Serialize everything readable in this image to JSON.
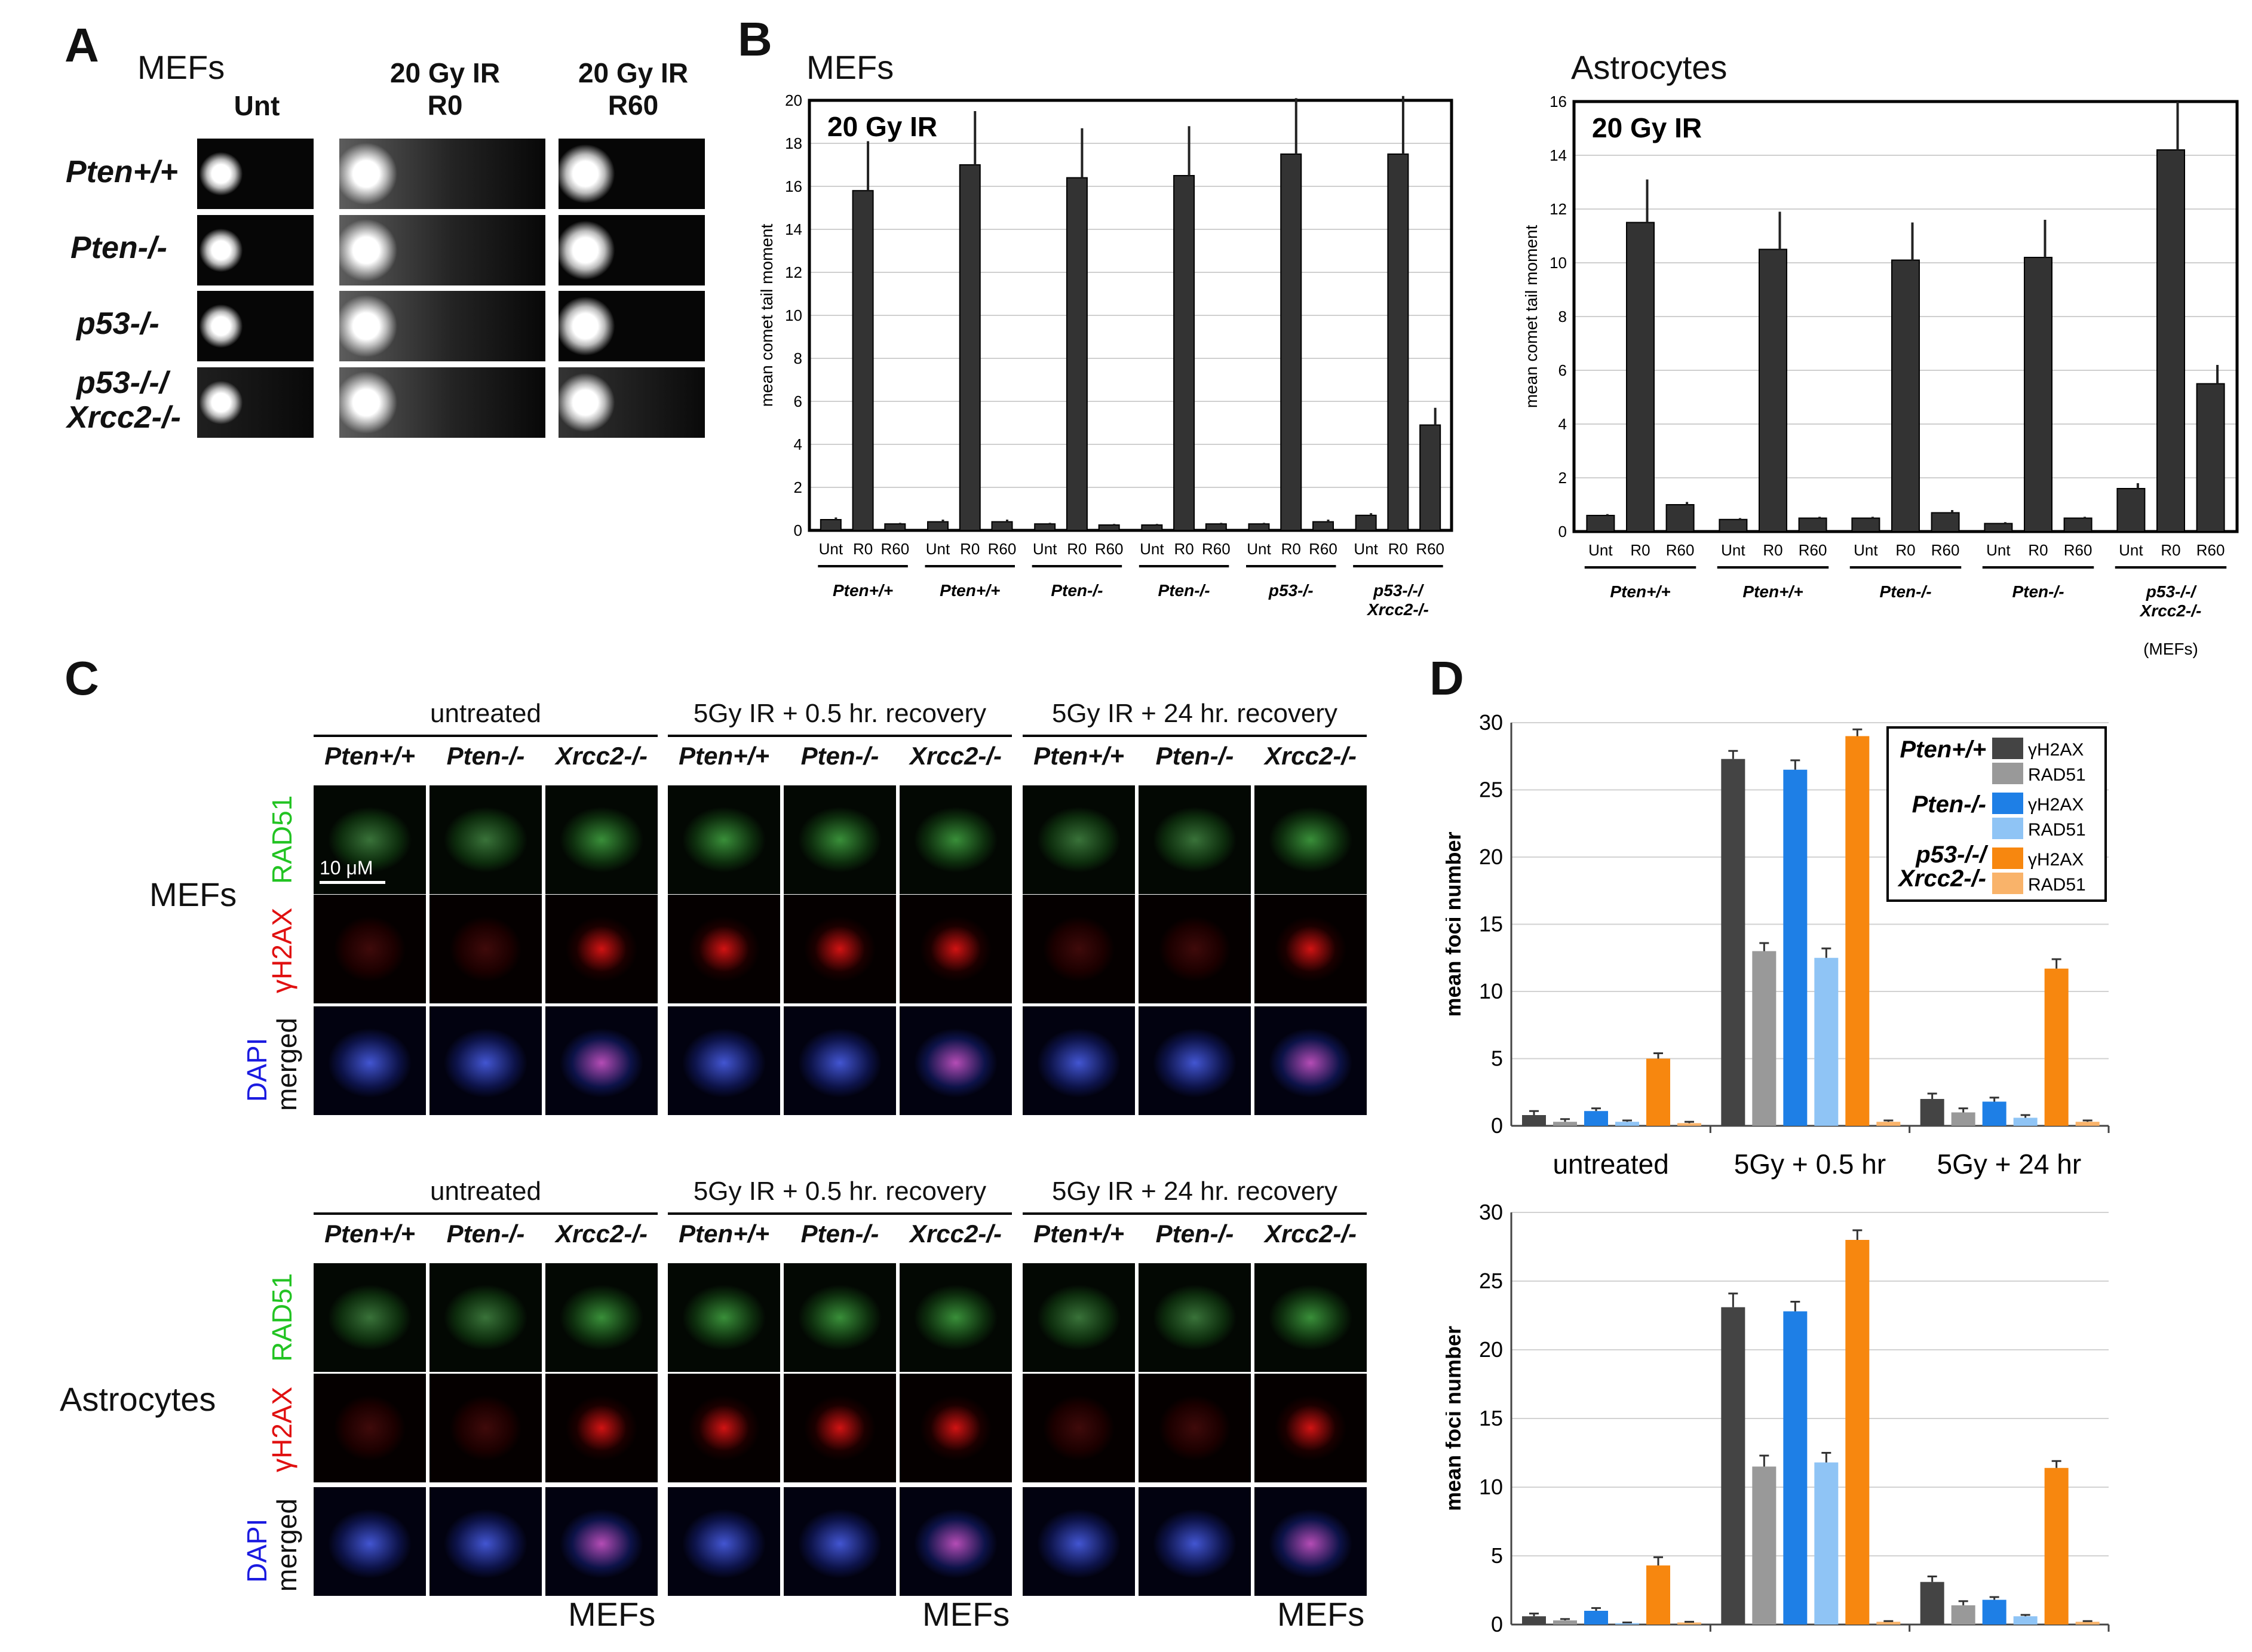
{
  "panels": {
    "A": "A",
    "B": "B",
    "C": "C",
    "D": "D"
  },
  "panelA": {
    "cell_label": "MEFs",
    "col_headers": [
      {
        "line1": "",
        "line2": "Unt"
      },
      {
        "line1": "20 Gy IR",
        "line2": "R0"
      },
      {
        "line1": "20 Gy IR",
        "line2": "R60"
      }
    ],
    "row_labels": [
      {
        "line1": "Pten+/+",
        "line2": ""
      },
      {
        "line1": "Pten-/-",
        "line2": ""
      },
      {
        "line1": "p53-/-",
        "line2": ""
      },
      {
        "line1": "p53-/-/",
        "line2": "Xrcc2-/-"
      }
    ]
  },
  "panelB": {
    "mefs_title": "MEFs",
    "astro_title": "Astrocytes",
    "inner_label": "20 Gy IR",
    "ylabel": "mean comet tail moment",
    "mefs_groups": [
      "Pten+/+",
      "Pten+/+",
      "Pten-/-",
      "Pten-/-",
      "p53-/-",
      "p53-/-/ Xrcc2-/-"
    ],
    "astro_groups": [
      "Pten+/+",
      "Pten+/+",
      "Pten-/-",
      "Pten-/-",
      "p53-/-/ Xrcc2-/-"
    ],
    "astro_last_note": "(MEFs)",
    "xticks": [
      "Unt",
      "R0",
      "R60"
    ]
  },
  "panelC": {
    "top_cell": "MEFs",
    "bottom_cell": "Astrocytes",
    "conditions": [
      "untreated",
      "5Gy IR + 0.5 hr. recovery",
      "5Gy IR + 24 hr. recovery"
    ],
    "genotypes": [
      "Pten+/+",
      "Pten-/-",
      "Xrcc2-/-"
    ],
    "stain_rad51": "RAD51",
    "stain_h2ax": "γH2AX",
    "stain_dapi": "DAPI",
    "stain_merged": "merged",
    "scale_bar": "10 μM",
    "bottom_note": "MEFs"
  },
  "panelD": {
    "ylabel": "mean foci number",
    "groups": [
      "untreated",
      "5Gy + 0.5 hr",
      "5Gy + 24 hr"
    ],
    "legend": [
      {
        "geno": "Pten+/+",
        "items": [
          "γH2AX",
          "RAD51"
        ]
      },
      {
        "geno": "Pten-/-",
        "items": [
          "γH2AX",
          "RAD51"
        ]
      },
      {
        "geno": "p53-/-/ Xrcc2-/-",
        "items": [
          "γH2AX",
          "RAD51"
        ]
      }
    ]
  },
  "chart_data": [
    {
      "type": "bar",
      "title": "MEFs",
      "annotation": "20 Gy IR",
      "ylabel": "mean comet tail moment",
      "ylim": [
        0,
        20
      ],
      "yticks": [
        0,
        2,
        4,
        6,
        8,
        10,
        12,
        14,
        16,
        18,
        20
      ],
      "categories": [
        "Unt",
        "R0",
        "R60"
      ],
      "groups": [
        "Pten+/+",
        "Pten+/+",
        "Pten-/-",
        "Pten-/-",
        "p53-/-",
        "p53-/-/ Xrcc2-/-"
      ],
      "values": [
        [
          0.5,
          15.8,
          0.3
        ],
        [
          0.4,
          17.0,
          0.4
        ],
        [
          0.3,
          16.4,
          0.25
        ],
        [
          0.25,
          16.5,
          0.3
        ],
        [
          0.3,
          17.5,
          0.4
        ],
        [
          0.7,
          17.5,
          4.9
        ]
      ],
      "errors": [
        [
          0.1,
          2.3,
          0.05
        ],
        [
          0.1,
          2.5,
          0.1
        ],
        [
          0.05,
          2.3,
          0.05
        ],
        [
          0.05,
          2.3,
          0.05
        ],
        [
          0.05,
          2.6,
          0.1
        ],
        [
          0.1,
          2.7,
          0.8
        ]
      ],
      "color": "#333333"
    },
    {
      "type": "bar",
      "title": "Astrocytes",
      "annotation": "20 Gy IR",
      "ylabel": "mean comet tail moment",
      "ylim": [
        0,
        16
      ],
      "yticks": [
        0,
        2,
        4,
        6,
        8,
        10,
        12,
        14,
        16
      ],
      "categories": [
        "Unt",
        "R0",
        "R60"
      ],
      "groups": [
        "Pten+/+",
        "Pten+/+",
        "Pten-/-",
        "Pten-/-",
        "p53-/-/ Xrcc2-/- (MEFs)"
      ],
      "values": [
        [
          0.6,
          11.5,
          1.0
        ],
        [
          0.45,
          10.5,
          0.5
        ],
        [
          0.5,
          10.1,
          0.7
        ],
        [
          0.3,
          10.2,
          0.5
        ],
        [
          1.6,
          14.2,
          5.5
        ]
      ],
      "errors": [
        [
          0.05,
          1.6,
          0.1
        ],
        [
          0.05,
          1.4,
          0.05
        ],
        [
          0.05,
          1.4,
          0.1
        ],
        [
          0.05,
          1.4,
          0.05
        ],
        [
          0.2,
          1.8,
          0.7
        ]
      ],
      "color": "#333333"
    },
    {
      "type": "bar",
      "cell": "MEFs",
      "ylabel": "mean foci number",
      "ylim": [
        0,
        30
      ],
      "yticks": [
        0,
        5,
        10,
        15,
        20,
        25,
        30
      ],
      "categories": [
        "untreated",
        "5Gy + 0.5 hr",
        "5Gy + 24 hr"
      ],
      "series": [
        {
          "name": "Pten+/+ γH2AX",
          "color": "#444444",
          "values": [
            0.8,
            27.3,
            2.0
          ],
          "errors": [
            0.3,
            0.6,
            0.4
          ]
        },
        {
          "name": "Pten+/+ RAD51",
          "color": "#999999",
          "values": [
            0.3,
            13.0,
            1.0
          ],
          "errors": [
            0.2,
            0.6,
            0.3
          ]
        },
        {
          "name": "Pten-/- γH2AX",
          "color": "#1e7fe6",
          "values": [
            1.1,
            26.5,
            1.8
          ],
          "errors": [
            0.2,
            0.7,
            0.3
          ]
        },
        {
          "name": "Pten-/- RAD51",
          "color": "#8fc4f5",
          "values": [
            0.3,
            12.5,
            0.6
          ],
          "errors": [
            0.1,
            0.7,
            0.2
          ]
        },
        {
          "name": "p53-/-/Xrcc2-/- γH2AX",
          "color": "#f7870f",
          "values": [
            5.0,
            29.0,
            11.7
          ],
          "errors": [
            0.4,
            0.5,
            0.7
          ]
        },
        {
          "name": "p53-/-/Xrcc2-/- RAD51",
          "color": "#f9b36a",
          "values": [
            0.2,
            0.3,
            0.3
          ],
          "errors": [
            0.1,
            0.1,
            0.1
          ]
        }
      ]
    },
    {
      "type": "bar",
      "cell": "Astrocytes",
      "ylabel": "mean foci number",
      "ylim": [
        0,
        30
      ],
      "yticks": [
        0,
        5,
        10,
        15,
        20,
        25,
        30
      ],
      "categories": [
        "untreated",
        "5Gy + 0.5 hr",
        "5Gy + 24 hr"
      ],
      "series": [
        {
          "name": "Pten+/+ γH2AX",
          "color": "#444444",
          "values": [
            0.6,
            23.1,
            3.1
          ],
          "errors": [
            0.2,
            1.0,
            0.4
          ]
        },
        {
          "name": "Pten+/+ RAD51",
          "color": "#999999",
          "values": [
            0.3,
            11.5,
            1.4
          ],
          "errors": [
            0.1,
            0.8,
            0.3
          ]
        },
        {
          "name": "Pten-/- γH2AX",
          "color": "#1e7fe6",
          "values": [
            1.0,
            22.8,
            1.8
          ],
          "errors": [
            0.2,
            0.7,
            0.2
          ]
        },
        {
          "name": "Pten-/- RAD51",
          "color": "#8fc4f5",
          "values": [
            0.1,
            11.8,
            0.6
          ],
          "errors": [
            0.05,
            0.7,
            0.1
          ]
        },
        {
          "name": "p53-/-/Xrcc2-/- γH2AX",
          "color": "#f7870f",
          "values": [
            4.3,
            28.0,
            11.4
          ],
          "errors": [
            0.6,
            0.7,
            0.5
          ]
        },
        {
          "name": "p53-/-/Xrcc2-/- RAD51",
          "color": "#f9b36a",
          "values": [
            0.15,
            0.2,
            0.2
          ],
          "errors": [
            0.05,
            0.05,
            0.05
          ]
        }
      ]
    }
  ]
}
